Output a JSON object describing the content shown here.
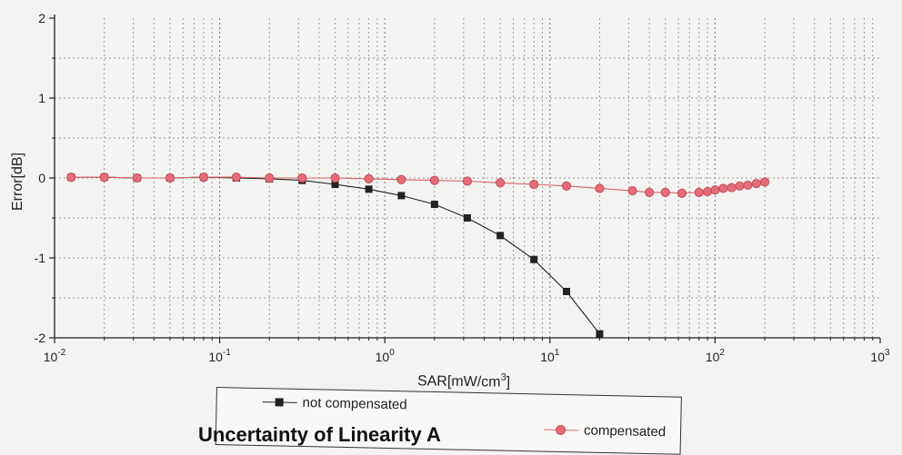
{
  "chart_data": {
    "type": "line",
    "title": "Uncertainty of Linearity A",
    "xlabel": "SAR[mW/cm",
    "xlabel_sup": "3",
    "xlabel_end": "]",
    "ylabel": "Error[dB]",
    "xscale": "log",
    "xlim": [
      0.01,
      1000
    ],
    "ylim": [
      -2,
      2
    ],
    "grid": true,
    "legend_position": "bottom",
    "x_ticks": [
      {
        "base": "10",
        "exp": "-2"
      },
      {
        "base": "10",
        "exp": "-1"
      },
      {
        "base": "10",
        "exp": "0"
      },
      {
        "base": "10",
        "exp": "1"
      },
      {
        "base": "10",
        "exp": "2"
      },
      {
        "base": "10",
        "exp": "3"
      }
    ],
    "y_ticks": [
      "2",
      "1",
      "0",
      "-1",
      "-2"
    ],
    "series": [
      {
        "name": "not compensated",
        "color": "#222222",
        "marker": "square",
        "x": [
          0.0126,
          0.02,
          0.0316,
          0.05,
          0.08,
          0.126,
          0.2,
          0.316,
          0.5,
          0.8,
          1.26,
          2,
          3.16,
          5,
          8,
          12.6,
          20
        ],
        "y": [
          0.01,
          0.01,
          0.0,
          0.0,
          0.01,
          0.0,
          -0.01,
          -0.03,
          -0.08,
          -0.14,
          -0.22,
          -0.33,
          -0.5,
          -0.72,
          -1.02,
          -1.42,
          -1.95
        ]
      },
      {
        "name": "compensated",
        "color": "#e56c78",
        "marker": "circle",
        "x": [
          0.0126,
          0.02,
          0.0316,
          0.05,
          0.08,
          0.126,
          0.2,
          0.316,
          0.5,
          0.8,
          1.26,
          2,
          3.16,
          5,
          8,
          12.6,
          20,
          31.6,
          40,
          50,
          63,
          80,
          90,
          100,
          112,
          126,
          141,
          158,
          178,
          200
        ],
        "y": [
          0.01,
          0.01,
          0.0,
          0.0,
          0.01,
          0.01,
          0.0,
          0.0,
          0.0,
          -0.01,
          -0.02,
          -0.03,
          -0.04,
          -0.06,
          -0.08,
          -0.1,
          -0.13,
          -0.16,
          -0.18,
          -0.18,
          -0.19,
          -0.18,
          -0.17,
          -0.15,
          -0.13,
          -0.12,
          -0.1,
          -0.09,
          -0.07,
          -0.05
        ]
      }
    ]
  }
}
